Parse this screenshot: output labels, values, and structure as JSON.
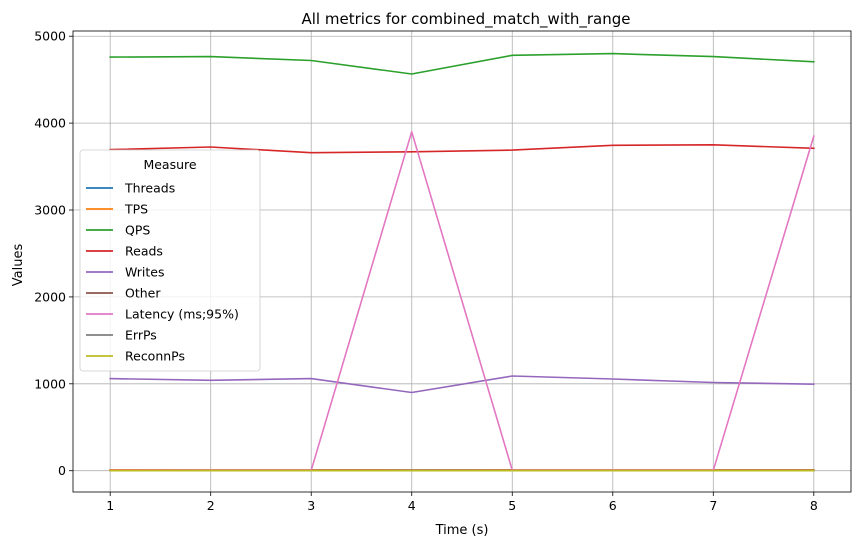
{
  "chart_data": {
    "type": "line",
    "title": "All metrics for combined_match_with_range",
    "xlabel": "Time (s)",
    "ylabel": "Values",
    "x": [
      1,
      2,
      3,
      4,
      5,
      6,
      7,
      8
    ],
    "xticks": [
      "1",
      "2",
      "3",
      "4",
      "5",
      "6",
      "7",
      "8"
    ],
    "yticks": [
      "0",
      "1000",
      "2000",
      "3000",
      "4000",
      "5000"
    ],
    "ytick_values": [
      0,
      1000,
      2000,
      3000,
      4000,
      5000
    ],
    "xlim": [
      0.63,
      8.37
    ],
    "ylim": [
      -245,
      5060
    ],
    "grid": true,
    "legend": {
      "title": "Measure",
      "position": "center-left"
    },
    "series": [
      {
        "name": "Threads",
        "color": "#1f77b4",
        "values": [
          8,
          8,
          8,
          8,
          8,
          8,
          8,
          8
        ]
      },
      {
        "name": "TPS",
        "color": "#ff7f0e",
        "values": [
          10,
          9,
          9,
          8,
          9,
          9,
          9,
          9
        ]
      },
      {
        "name": "QPS",
        "color": "#2ca02c",
        "values": [
          4760,
          4765,
          4720,
          4565,
          4780,
          4800,
          4765,
          4705
        ]
      },
      {
        "name": "Reads",
        "color": "#d62728",
        "values": [
          3695,
          3725,
          3660,
          3670,
          3690,
          3745,
          3750,
          3710
        ]
      },
      {
        "name": "Writes",
        "color": "#9467bd",
        "values": [
          1060,
          1040,
          1060,
          900,
          1090,
          1055,
          1015,
          995
        ]
      },
      {
        "name": "Other",
        "color": "#8c564b",
        "values": [
          3,
          3,
          3,
          3,
          3,
          3,
          3,
          3
        ]
      },
      {
        "name": "Latency (ms;95%)",
        "color": "#e377c2",
        "values": [
          5,
          5,
          5,
          3900,
          5,
          5,
          5,
          3850
        ]
      },
      {
        "name": "ErrPs",
        "color": "#7f7f7f",
        "values": [
          0,
          0,
          0,
          0,
          0,
          0,
          0,
          0
        ]
      },
      {
        "name": "ReconnPs",
        "color": "#bcbd22",
        "values": [
          0,
          0,
          0,
          0,
          0,
          0,
          0,
          0
        ]
      }
    ]
  }
}
